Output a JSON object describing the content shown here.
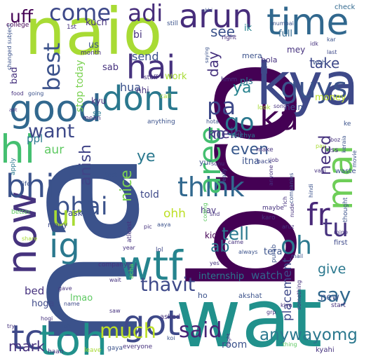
{
  "background": "#ffffff",
  "words": [
    {
      "text": "na",
      "color": "#3b528b",
      "rot": -90
    },
    {
      "text": "bro",
      "color": "#440154",
      "rot": -90
    },
    {
      "text": "wat",
      "color": "#21918c",
      "rot": 0
    },
    {
      "text": "naio",
      "color": "#a8db34",
      "rot": 0
    },
    {
      "text": "kya",
      "color": "#3e4989",
      "rot": 0
    },
    {
      "text": "ka",
      "color": "#440154",
      "rot": 0
    },
    {
      "text": "toh",
      "color": "#21918c",
      "rot": 0
    },
    {
      "text": "now",
      "color": "#46337e",
      "rot": -90
    },
    {
      "text": "good",
      "color": "#31688e",
      "rot": 0
    },
    {
      "text": "dont",
      "color": "#2a788e",
      "rot": 0
    },
    {
      "text": "time",
      "color": "#31688e",
      "rot": 0
    },
    {
      "text": "arun",
      "color": "#472d7b",
      "rot": 0
    },
    {
      "text": "hai",
      "color": "#46327e",
      "rot": 0
    },
    {
      "text": "guys",
      "color": "#3b528b",
      "rot": 0
    },
    {
      "text": "mai",
      "color": "#6ece58",
      "rot": -90
    },
    {
      "text": "hi",
      "color": "#44bf70",
      "rot": 0
    },
    {
      "text": "bhi",
      "color": "#3b528b",
      "rot": 0
    },
    {
      "text": "wtf",
      "color": "#25848e",
      "rot": 0
    },
    {
      "text": "got",
      "color": "#3e4989",
      "rot": 0
    },
    {
      "text": "think",
      "color": "#31688e",
      "rot": 0
    },
    {
      "text": "bhai",
      "color": "#3b528b",
      "rot": 0
    },
    {
      "text": "aree",
      "color": "#44bf70",
      "rot": -90
    },
    {
      "text": "come",
      "color": "#3e4989",
      "rot": 0
    },
    {
      "text": "adi",
      "color": "#472d7b",
      "rot": 0
    },
    {
      "text": "ig",
      "color": "#2a788e",
      "rot": 0
    },
    {
      "text": "tc",
      "color": "#3e4989",
      "rot": 0
    },
    {
      "text": "ur",
      "color": "#a8db34",
      "rot": 0
    },
    {
      "text": "fr",
      "color": "#482878",
      "rot": 0
    },
    {
      "text": "oh",
      "color": "#2a788e",
      "rot": 0
    },
    {
      "text": "tu",
      "color": "#46327e",
      "rot": 0
    },
    {
      "text": "go",
      "color": "#2a788e",
      "rot": 0
    },
    {
      "text": "pa",
      "color": "#3e4989",
      "rot": 0
    },
    {
      "text": "ya",
      "color": "#26828e",
      "rot": 0
    },
    {
      "text": "said",
      "color": "#482475",
      "rot": 0
    },
    {
      "text": "much",
      "color": "#bddf26",
      "rot": 0
    },
    {
      "text": "mark",
      "color": "#46327e",
      "rot": 0
    },
    {
      "text": "anywayomg",
      "color": "#2a788e",
      "rot": 0
    },
    {
      "text": "say",
      "color": "#31688e",
      "rot": 0
    },
    {
      "text": "thavit",
      "color": "#3e4989",
      "rot": 0
    },
    {
      "text": "tell",
      "color": "#2a788e",
      "rot": 0
    },
    {
      "text": "ab",
      "color": "#2a788e",
      "rot": 0
    },
    {
      "text": "want",
      "color": "#3e4989",
      "rot": 0
    },
    {
      "text": "best",
      "color": "#3b528b",
      "rot": -90
    },
    {
      "text": "take",
      "color": "#3e4989",
      "rot": 0
    },
    {
      "text": "see",
      "color": "#3b528b",
      "rot": 0
    },
    {
      "text": "mein",
      "color": "#46327e",
      "rot": 0
    },
    {
      "text": "ko",
      "color": "#414487",
      "rot": 0
    },
    {
      "text": "even",
      "color": "#38588c",
      "rot": 0
    },
    {
      "text": "need",
      "color": "#46327e",
      "rot": -90
    },
    {
      "text": "anish",
      "color": "#414487",
      "rot": -90
    },
    {
      "text": "nice",
      "color": "#7ad151",
      "rot": -90
    },
    {
      "text": "ye",
      "color": "#2a788e",
      "rot": 0
    },
    {
      "text": "ohh",
      "color": "#bddf26",
      "rot": 0
    },
    {
      "text": "day",
      "color": "#46327e",
      "rot": -90
    },
    {
      "text": "uff",
      "color": "#440154",
      "rot": 0
    },
    {
      "text": "give",
      "color": "#2a788e",
      "rot": 0
    },
    {
      "text": "watch",
      "color": "#33638d",
      "rot": 0
    },
    {
      "text": "internship",
      "color": "#2a788e",
      "rot": 0
    },
    {
      "text": "placement",
      "color": "#3e4989",
      "rot": -90
    },
    {
      "text": "tera",
      "color": "#3b528b",
      "rot": 0
    },
    {
      "text": "kid",
      "color": "#440154",
      "rot": 0
    },
    {
      "text": "hav",
      "color": "#46327e",
      "rot": 0
    },
    {
      "text": "told",
      "color": "#3e4989",
      "rot": 0
    },
    {
      "text": "hua",
      "color": "#3b528b",
      "rot": 0
    },
    {
      "text": "send",
      "color": "#3b528b",
      "rot": 0
    },
    {
      "text": "stop today",
      "color": "#7ad151",
      "rot": -90
    },
    {
      "text": "ppl",
      "color": "#2a788e",
      "rot": 0
    },
    {
      "text": "aur",
      "color": "#5ec962",
      "rot": 0
    },
    {
      "text": "sab",
      "color": "#46327e",
      "rot": 0
    },
    {
      "text": "work",
      "color": "#a8db34",
      "rot": 0
    },
    {
      "text": "bi",
      "color": "#46327e",
      "rot": 0
    },
    {
      "text": "bad",
      "color": "#46327e",
      "rot": -90
    },
    {
      "text": "full",
      "color": "#31688e",
      "rot": 0
    },
    {
      "text": "ik",
      "color": "#26828e",
      "rot": 0
    },
    {
      "text": "mey",
      "color": "#46327e",
      "rot": 0
    },
    {
      "text": "bola",
      "color": "#46327e",
      "rot": 0
    },
    {
      "text": "mera",
      "color": "#3b528b",
      "rot": 0
    },
    {
      "text": "ki",
      "color": "#3e4989",
      "rot": 0
    },
    {
      "text": "pls",
      "color": "#2a788e",
      "rot": 0
    },
    {
      "text": "itna",
      "color": "#3b528b",
      "rot": 0
    },
    {
      "text": "hoga",
      "color": "#3e4989",
      "rot": 0
    },
    {
      "text": "bed",
      "color": "#46327e",
      "rot": 0
    },
    {
      "text": "lmao",
      "color": "#5ec962",
      "rot": 0
    },
    {
      "text": "room",
      "color": "#3b528b",
      "rot": 0
    },
    {
      "text": "new",
      "color": "#3b528b",
      "rot": 0
    },
    {
      "text": "hein",
      "color": "#3b528b",
      "rot": 0
    },
    {
      "text": "money",
      "color": "#bddf26",
      "rot": 0
    },
    {
      "text": "kuch",
      "color": "#46327e",
      "rot": 0
    },
    {
      "text": "us",
      "color": "#3b528b",
      "rot": 0
    },
    {
      "text": "kyu",
      "color": "#46327e",
      "rot": 0
    },
    {
      "text": "se",
      "color": "#2a788e",
      "rot": 0
    },
    {
      "text": "nhi",
      "color": "#46327e",
      "rot": 0
    },
    {
      "text": "ask",
      "color": "#3e4989",
      "rot": 0
    },
    {
      "text": "yur",
      "color": "#3b528b",
      "rot": 0
    },
    {
      "text": "check",
      "color": "#31688e",
      "rot": 0
    },
    {
      "text": "college",
      "color": "#440154",
      "rot": 0
    },
    {
      "text": "1st",
      "color": "#46327e",
      "rot": 0
    },
    {
      "text": "still",
      "color": "#3b528b",
      "rot": 0
    },
    {
      "text": "right",
      "color": "#472d7b",
      "rot": 0
    },
    {
      "text": "month",
      "color": "#46327e",
      "rot": 0
    },
    {
      "text": "stuff",
      "color": "#46327e",
      "rot": 0
    },
    {
      "text": "hmm",
      "color": "#46327e",
      "rot": 0
    },
    {
      "text": "call",
      "color": "#a8db34",
      "rot": 0
    },
    {
      "text": "mean",
      "color": "#46327e",
      "rot": 0
    },
    {
      "text": "anything",
      "color": "#3b528b",
      "rot": 0
    },
    {
      "text": "hota",
      "color": "#3b528b",
      "rot": 0
    },
    {
      "text": "adithya",
      "color": "#2a788e",
      "rot": 0
    },
    {
      "text": "make",
      "color": "#46327e",
      "rot": 0
    },
    {
      "text": "test",
      "color": "#3b528b",
      "rot": 0
    },
    {
      "text": "job",
      "color": "#46327e",
      "rot": 0
    },
    {
      "text": "back",
      "color": "#3e4989",
      "rot": 0
    },
    {
      "text": "pay",
      "color": "#a8db34",
      "rot": 0
    },
    {
      "text": "less",
      "color": "#46327e",
      "rot": 0
    },
    {
      "text": "vahi",
      "color": "#46327e",
      "rot": 0
    },
    {
      "text": "waste",
      "color": "#3b528b",
      "rot": 0
    },
    {
      "text": "song",
      "color": "#46327e",
      "rot": 0
    },
    {
      "text": "look",
      "color": "#a8db34",
      "rot": 0
    },
    {
      "text": "kiya",
      "color": "#46327e",
      "rot": 0
    },
    {
      "text": "first",
      "color": "#3e4989",
      "rot": 0
    },
    {
      "text": "mine",
      "color": "#46327e",
      "rot": 0
    },
    {
      "text": "mail",
      "color": "#3b528b",
      "rot": 0
    },
    {
      "text": "start",
      "color": "#46327e",
      "rot": 0
    },
    {
      "text": "kyahi",
      "color": "#46327e",
      "rot": 0
    },
    {
      "text": "thing",
      "color": "#5ec962",
      "rot": 0
    },
    {
      "text": "everyone",
      "color": "#46327e",
      "rot": 0
    },
    {
      "text": "gaya",
      "color": "#3b528b",
      "rot": 0
    },
    {
      "text": "leave",
      "color": "#a8db34",
      "rot": 0
    },
    {
      "text": "haan",
      "color": "#46327e",
      "rot": 0
    },
    {
      "text": "left",
      "color": "#3b528b",
      "rot": 0
    },
    {
      "text": "saw",
      "color": "#46327e",
      "rot": 0
    },
    {
      "text": "koi",
      "color": "#3b528b",
      "rot": 0
    },
    {
      "text": "name",
      "color": "#3e4989",
      "rot": 0
    },
    {
      "text": "gave",
      "color": "#46327e",
      "rot": 0
    },
    {
      "text": "company",
      "color": "#46327e",
      "rot": 0
    },
    {
      "text": "many",
      "color": "#3e4989",
      "rot": 0
    },
    {
      "text": "better",
      "color": "#5ec962",
      "rot": 0
    },
    {
      "text": "life",
      "color": "#3b528b",
      "rot": 0
    },
    {
      "text": "apply",
      "color": "#2a788e",
      "rot": -90
    },
    {
      "text": "food",
      "color": "#46327e",
      "rot": 0
    },
    {
      "text": "going",
      "color": "#3b528b",
      "rot": 0
    },
    {
      "text": "changed subject",
      "color": "#3b528b",
      "rot": -90
    },
    {
      "text": "abhi",
      "color": "#3b528b",
      "rot": 0
    },
    {
      "text": "mumbai",
      "color": "#3b528b",
      "rot": 0
    },
    {
      "text": "last",
      "color": "#3e4989",
      "rot": 0
    },
    {
      "text": "idk",
      "color": "#46327e",
      "rot": 0
    },
    {
      "text": "woh",
      "color": "#3b528b",
      "rot": 0
    },
    {
      "text": "kar",
      "color": "#3b528b",
      "rot": 0
    },
    {
      "text": "abt",
      "color": "#46327e",
      "rot": 0
    },
    {
      "text": "saying",
      "color": "#3b528b",
      "rot": -90
    },
    {
      "text": "sonu",
      "color": "#46327e",
      "rot": 0
    },
    {
      "text": "really",
      "color": "#3b528b",
      "rot": -90
    },
    {
      "text": "coding",
      "color": "#5ec962",
      "rot": -90
    },
    {
      "text": "shd",
      "color": "#46327e",
      "rot": 0
    },
    {
      "text": "came",
      "color": "#46327e",
      "rot": 0
    },
    {
      "text": "always",
      "color": "#3b528b",
      "rot": 0
    },
    {
      "text": "lol",
      "color": "#3e4989",
      "rot": 0
    },
    {
      "text": "year",
      "color": "#46327e",
      "rot": 0
    },
    {
      "text": "atleast",
      "color": "#46327e",
      "rot": -90
    },
    {
      "text": "purab",
      "color": "#3b528b",
      "rot": -90
    },
    {
      "text": "acha",
      "color": "#5ec962",
      "rot": -90
    },
    {
      "text": "yes",
      "color": "#46327e",
      "rot": 0
    },
    {
      "text": "pic",
      "color": "#46327e",
      "rot": 0
    },
    {
      "text": "aaya",
      "color": "#3b528b",
      "rot": 0
    },
    {
      "text": "wait",
      "color": "#46327e",
      "rot": 0
    },
    {
      "text": "ho",
      "color": "#3b528b",
      "rot": 0
    },
    {
      "text": "something",
      "color": "#46327e",
      "rot": -90
    },
    {
      "text": "grp",
      "color": "#46327e",
      "rot": 0
    },
    {
      "text": "akshat",
      "color": "#3b528b",
      "rot": 0
    },
    {
      "text": "asked",
      "color": "#46327e",
      "rot": 0
    },
    {
      "text": "maybe",
      "color": "#46327e",
      "rot": 0
    },
    {
      "text": "karo",
      "color": "#46327e",
      "rot": 0
    },
    {
      "text": "aruz",
      "color": "#46327e",
      "rot": 0
    },
    {
      "text": "rich",
      "color": "#46327e",
      "rot": -90
    },
    {
      "text": "companies",
      "color": "#3b528b",
      "rot": -90
    },
    {
      "text": "anyone",
      "color": "#46327e",
      "rot": -90
    },
    {
      "text": "hindi",
      "color": "#3b528b",
      "rot": -90
    },
    {
      "text": "nude",
      "color": "#46327e",
      "rot": -90
    },
    {
      "text": "thought",
      "color": "#3b528b",
      "rot": -90
    },
    {
      "text": "movie",
      "color": "#3b528b",
      "rot": -90
    },
    {
      "text": "ke",
      "color": "#3b528b",
      "rot": 0
    },
    {
      "text": "keraia",
      "color": "#3b528b",
      "rot": -90
    },
    {
      "text": "boz",
      "color": "#46327e",
      "rot": 0
    },
    {
      "text": "share",
      "color": "#a8db34",
      "rot": 0
    },
    {
      "text": "try",
      "color": "#46327e",
      "rot": 0
    },
    {
      "text": "hogi",
      "color": "#46327e",
      "rot": 0
    },
    {
      "text": "mght",
      "color": "#46327e",
      "rot": -90
    }
  ]
}
